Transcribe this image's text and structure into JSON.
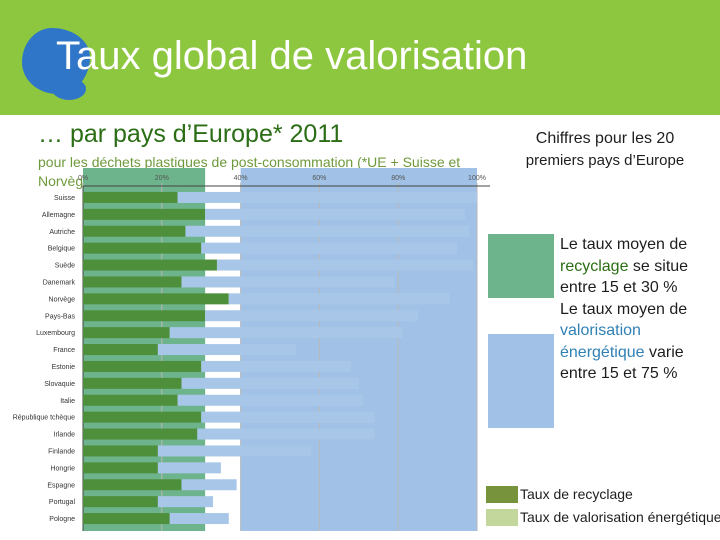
{
  "header": {
    "title": "Taux global de valorisation",
    "subtitle": "… par pays d’Europe* 2011",
    "note": "pour les déchets plastiques  de post-consommation (*UE + Suisse et Norvège)"
  },
  "side": {
    "chiffres_title": "Chiffres pour les 20",
    "chiffres_sub": "premiers pays d’Europe",
    "recyclage_text": {
      "p1": "Le taux moyen de ",
      "w1": "recyclage",
      "p2": " se situe entre 15 et 30 %",
      "p3": "Le taux moyen de ",
      "w2": "valorisation énergétique",
      "p4": " varie entre 15 et 75 %"
    }
  },
  "legend": {
    "recyclage": "Taux de recyclage",
    "valorisation": "Taux de valorisation énergétique"
  },
  "colors": {
    "header_bg": "#8dc63f",
    "recycling_bar": "#4e8f3c",
    "energy_bar": "#a8c7e8",
    "band_green": "#6db38c",
    "band_blue": "#a1c2e6",
    "legend_recycling": "#77933c",
    "legend_energy": "#c3d69b"
  },
  "chart_data": {
    "type": "bar",
    "orientation": "horizontal",
    "stacked": true,
    "categories": [
      "Suisse",
      "Allemagne",
      "Autriche",
      "Belgique",
      "Suède",
      "Danemark",
      "Norvège",
      "Pays-Bas",
      "Luxembourg",
      "France",
      "Estonie",
      "Slovaquie",
      "Italie",
      "République tchèque",
      "Irlande",
      "Finlande",
      "Hongrie",
      "Espagne",
      "Portugal",
      "Pologne"
    ],
    "x_ticks": [
      "0%",
      "20%",
      "40%",
      "60%",
      "80%",
      "100%"
    ],
    "xlim": [
      0,
      100
    ],
    "series": [
      {
        "name": "Taux de recyclage",
        "values": [
          24,
          31,
          26,
          30,
          34,
          25,
          37,
          31,
          22,
          19,
          30,
          25,
          24,
          30,
          29,
          19,
          19,
          25,
          19,
          22
        ]
      },
      {
        "name": "Taux de valorisation énergétique",
        "values": [
          76,
          66,
          72,
          65,
          65,
          54,
          56,
          54,
          59,
          35,
          38,
          45,
          47,
          44,
          45,
          39,
          16,
          14,
          14,
          15
        ]
      }
    ]
  }
}
